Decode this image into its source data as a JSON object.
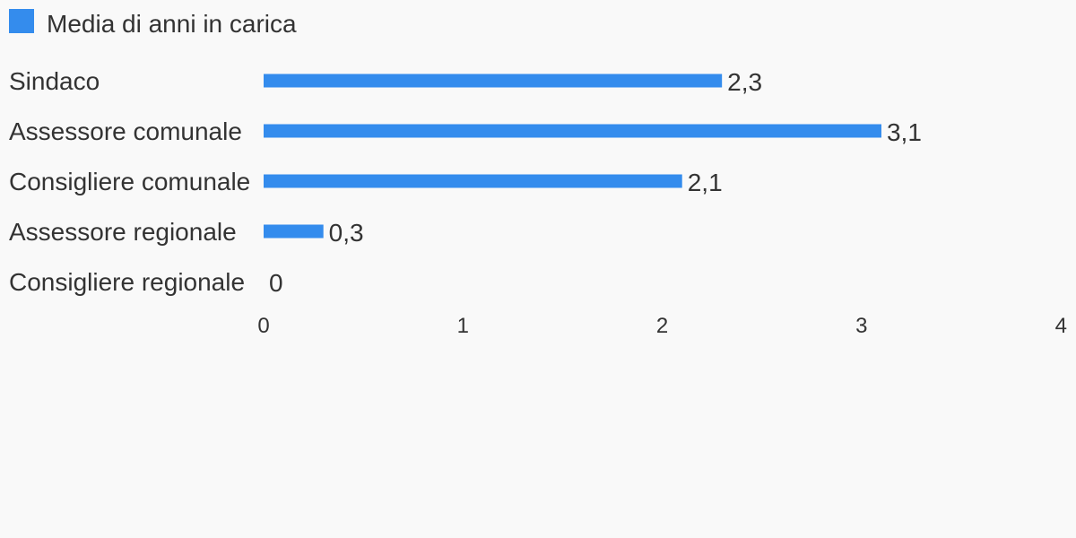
{
  "chart_data": {
    "type": "bar",
    "orientation": "horizontal",
    "categories": [
      "Sindaco",
      "Assessore comunale",
      "Consigliere comunale",
      "Assessore regionale",
      "Consigliere regionale"
    ],
    "series": [
      {
        "name": "Media di anni in carica",
        "values": [
          2.3,
          3.1,
          2.1,
          0.3,
          0
        ],
        "value_labels": [
          "2,3",
          "3,1",
          "2,1",
          "0,3",
          "0"
        ],
        "color": "#348ced"
      }
    ],
    "xlim": [
      0,
      4
    ],
    "x_ticks": [
      0,
      1,
      2,
      3,
      4
    ],
    "x_tick_labels": [
      "0",
      "1",
      "2",
      "3",
      "4"
    ],
    "grid": false,
    "legend_position": "top-left"
  }
}
